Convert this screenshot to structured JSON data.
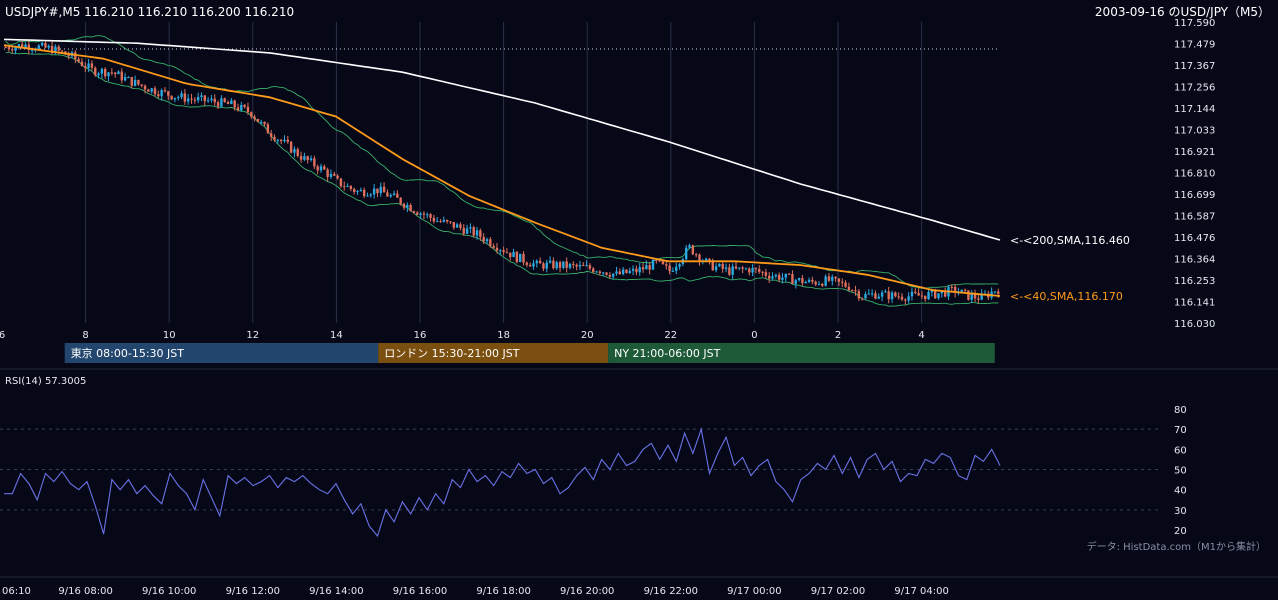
{
  "header": {
    "symbol_info": "USDJPY#,M5 116.210 116.210 116.200 116.210",
    "date_title": "2003-09-16 のUSD/JPY（M5）"
  },
  "chart_data": [
    {
      "type": "candlestick",
      "symbol": "USDJPY#",
      "timeframe": "M5",
      "ohlc_last": {
        "open": 116.21,
        "high": 116.21,
        "low": 116.2,
        "close": 116.21
      },
      "ylim": [
        116.03,
        117.59
      ],
      "y_ticks": [
        "117.590",
        "117.479",
        "117.367",
        "117.256",
        "117.144",
        "117.033",
        "116.921",
        "116.810",
        "116.699",
        "116.587",
        "116.476",
        "116.364",
        "116.253",
        "116.141",
        "116.030"
      ],
      "x_ticks": [
        "6",
        "8",
        "10",
        "12",
        "14",
        "16",
        "18",
        "20",
        "22",
        "0",
        "2",
        "4"
      ],
      "price_path": [
        [
          0,
          117.46
        ],
        [
          6,
          117.47
        ],
        [
          14,
          117.45
        ],
        [
          20,
          117.41
        ],
        [
          26,
          117.34
        ],
        [
          32,
          117.33
        ],
        [
          38,
          117.28
        ],
        [
          44,
          117.24
        ],
        [
          50,
          117.21
        ],
        [
          56,
          117.19
        ],
        [
          62,
          117.18
        ],
        [
          68,
          117.16
        ],
        [
          74,
          117.12
        ],
        [
          78,
          117.04
        ],
        [
          84,
          116.96
        ],
        [
          90,
          116.88
        ],
        [
          96,
          116.82
        ],
        [
          100,
          116.76
        ],
        [
          106,
          116.71
        ],
        [
          112,
          116.72
        ],
        [
          118,
          116.67
        ],
        [
          124,
          116.61
        ],
        [
          130,
          116.56
        ],
        [
          136,
          116.53
        ],
        [
          142,
          116.49
        ],
        [
          148,
          116.43
        ],
        [
          154,
          116.37
        ],
        [
          160,
          116.33
        ],
        [
          166,
          116.33
        ],
        [
          172,
          116.32
        ],
        [
          178,
          116.31
        ],
        [
          184,
          116.28
        ],
        [
          190,
          116.3
        ],
        [
          196,
          116.34
        ],
        [
          200,
          116.3
        ],
        [
          206,
          116.42
        ],
        [
          212,
          116.33
        ],
        [
          218,
          116.3
        ],
        [
          224,
          116.31
        ],
        [
          230,
          116.28
        ],
        [
          236,
          116.26
        ],
        [
          242,
          116.24
        ],
        [
          248,
          116.25
        ],
        [
          254,
          116.22
        ],
        [
          258,
          116.17
        ],
        [
          262,
          116.18
        ],
        [
          268,
          116.17
        ],
        [
          274,
          116.17
        ],
        [
          280,
          116.18
        ],
        [
          286,
          116.2
        ],
        [
          290,
          116.17
        ],
        [
          294,
          116.16
        ],
        [
          298,
          116.2
        ],
        [
          300,
          116.21
        ]
      ],
      "series": [
        {
          "name": "40,SMA",
          "label": "<-<40,SMA,116.170",
          "color": "#ff9a1a",
          "points": [
            [
              0,
              117.47
            ],
            [
              30,
              117.4
            ],
            [
              55,
              117.27
            ],
            [
              80,
              117.2
            ],
            [
              100,
              117.1
            ],
            [
              120,
              116.88
            ],
            [
              140,
              116.69
            ],
            [
              160,
              116.55
            ],
            [
              180,
              116.42
            ],
            [
              200,
              116.35
            ],
            [
              220,
              116.35
            ],
            [
              240,
              116.33
            ],
            [
              260,
              116.28
            ],
            [
              280,
              116.2
            ],
            [
              300,
              116.17
            ]
          ]
        },
        {
          "name": "200,SMA",
          "label": "<-<200,SMA,116.460",
          "color": "#ffffff",
          "points": [
            [
              0,
              117.5
            ],
            [
              40,
              117.48
            ],
            [
              80,
              117.43
            ],
            [
              120,
              117.33
            ],
            [
              160,
              117.17
            ],
            [
              200,
              116.97
            ],
            [
              240,
              116.75
            ],
            [
              280,
              116.56
            ],
            [
              300,
              116.46
            ]
          ]
        }
      ],
      "reference_line": {
        "value": 117.45,
        "style": "dotted"
      },
      "sessions": [
        {
          "label": "東京 08:00-15:30 JST",
          "color": "#23466f",
          "start": 1.5,
          "end": 9.0
        },
        {
          "label": "ロンドン 15:30-21:00 JST",
          "color": "#7a4f10",
          "start": 9.0,
          "end": 14.5
        },
        {
          "label": "NY 21:00-06:00 JST",
          "color": "#1e5a38",
          "start": 14.5,
          "end": 23.75
        }
      ]
    },
    {
      "type": "line",
      "title": "RSI(14) 57.3005",
      "ylim": [
        15,
        85
      ],
      "y_ticks": [
        "80",
        "70",
        "60",
        "50",
        "40",
        "30",
        "20"
      ],
      "x_ticks": [
        "06:10",
        "9/16 08:00",
        "9/16 10:00",
        "9/16 12:00",
        "9/16 14:00",
        "9/16 16:00",
        "9/16 18:00",
        "9/16 20:00",
        "9/16 22:00",
        "9/17 00:00",
        "9/17 02:00",
        "9/17 04:00"
      ],
      "series": [
        {
          "name": "RSI(14)",
          "color": "#6a72e6",
          "values": [
            38,
            38,
            48,
            43,
            35,
            48,
            44,
            49,
            43,
            40,
            44,
            32,
            18,
            45,
            40,
            45,
            38,
            42,
            37,
            33,
            48,
            42,
            38,
            30,
            45,
            36,
            27,
            47,
            43,
            46,
            42,
            44,
            47,
            41,
            46,
            44,
            47,
            43,
            40,
            38,
            43,
            35,
            28,
            33,
            22,
            17,
            30,
            24,
            34,
            28,
            36,
            30,
            38,
            33,
            45,
            41,
            50,
            44,
            47,
            42,
            49,
            46,
            53,
            48,
            50,
            43,
            46,
            38,
            41,
            47,
            51,
            45,
            55,
            50,
            58,
            52,
            54,
            60,
            63,
            55,
            62,
            54,
            68,
            58,
            70,
            48,
            58,
            66,
            52,
            56,
            47,
            52,
            55,
            44,
            40,
            34,
            45,
            48,
            53,
            50,
            57,
            48,
            56,
            46,
            55,
            58,
            50,
            54,
            44,
            48,
            47,
            55,
            53,
            58,
            56,
            47,
            45,
            57,
            54,
            60,
            52
          ]
        }
      ],
      "reference_lines": [
        70,
        50,
        30
      ],
      "credit": "データ: HistData.com（M1から集計）"
    }
  ],
  "colors": {
    "background": "#060818",
    "grid_vertical": "#2a2f48",
    "candle_up": "#2aa9e0",
    "candle_down": "#e0705c",
    "bollinger": "#39b06a",
    "rsi_line": "#6a72e6"
  }
}
